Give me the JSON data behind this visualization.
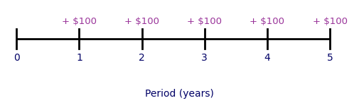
{
  "periods": [
    0,
    1,
    2,
    3,
    4,
    5
  ],
  "cash_flow_periods": [
    1,
    2,
    3,
    4,
    5
  ],
  "cash_flow_label": "+ $100",
  "xlabel": "Period (years)",
  "line_color": "#000000",
  "cash_label_color": "#993399",
  "period_label_color": "#000066",
  "xlabel_color": "#000066",
  "background_color": "#ffffff",
  "fontsize_cash": 9.5,
  "fontsize_period": 10,
  "fontsize_xlabel": 10
}
